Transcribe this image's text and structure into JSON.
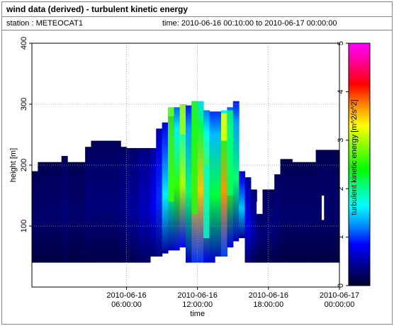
{
  "header": {
    "title": "wind data (derived) - turbulent kinetic energy",
    "station": "station : METEOCAT1",
    "time_range": "time: 2010-06-16 00:10:00 to 2010-06-17 00:00:00"
  },
  "colors": {
    "background_missing": "#ffffff",
    "grid": "#9a9a9a"
  },
  "chart_data": {
    "type": "heatmap",
    "xlabel": "time",
    "ylabel": "height [m]",
    "x_unit": "hours since 2010-06-16 00:00",
    "xlim": [
      -2,
      24
    ],
    "ylim": [
      0,
      400
    ],
    "x_ticks": [
      {
        "value": 6,
        "label1": "2010-06-16",
        "label2": "06:00:00"
      },
      {
        "value": 12,
        "label1": "2010-06-16",
        "label2": "12:00:00"
      },
      {
        "value": 18,
        "label1": "2010-06-16",
        "label2": "18:00:00"
      },
      {
        "value": 24,
        "label1": "2010-06-17",
        "label2": "00:00:00"
      }
    ],
    "y_ticks": [
      {
        "value": 100,
        "label": "100"
      },
      {
        "value": 200,
        "label": "200"
      },
      {
        "value": 300,
        "label": "300"
      },
      {
        "value": 400,
        "label": "400"
      }
    ],
    "colorbar": {
      "label": "turbulent kinetic energy [m^2/s^2]",
      "min": 0,
      "max": 5,
      "ticks": [
        "0",
        "1",
        "2",
        "3",
        "4",
        "5"
      ],
      "stops": [
        [
          0.0,
          "#00002e"
        ],
        [
          0.08,
          "#00008c"
        ],
        [
          0.17,
          "#0000ff"
        ],
        [
          0.25,
          "#0090ff"
        ],
        [
          0.33,
          "#00ffff"
        ],
        [
          0.4,
          "#00ff90"
        ],
        [
          0.48,
          "#00ff00"
        ],
        [
          0.57,
          "#80ff00"
        ],
        [
          0.66,
          "#ffff00"
        ],
        [
          0.74,
          "#ff9000"
        ],
        [
          0.83,
          "#ff0000"
        ],
        [
          0.92,
          "#ff0090"
        ],
        [
          1.0,
          "#ff00ff"
        ]
      ]
    },
    "columns": [
      {
        "x0": -2.0,
        "x1": -1.5,
        "bottom": 40,
        "top": 190,
        "tke": 0.2
      },
      {
        "x0": -1.5,
        "x1": 0.5,
        "bottom": 40,
        "top": 205,
        "tke": 0.2
      },
      {
        "x0": 0.5,
        "x1": 1.0,
        "bottom": 40,
        "top": 215,
        "tke": 0.25
      },
      {
        "x0": 1.0,
        "x1": 2.5,
        "bottom": 40,
        "top": 205,
        "tke": 0.2
      },
      {
        "x0": 2.5,
        "x1": 3.0,
        "bottom": 40,
        "top": 230,
        "tke": 0.25
      },
      {
        "x0": 3.0,
        "x1": 5.5,
        "bottom": 40,
        "top": 240,
        "tke": 0.25
      },
      {
        "x0": 5.5,
        "x1": 6.0,
        "bottom": 40,
        "top": 230,
        "tke": 0.3
      },
      {
        "x0": 6.0,
        "x1": 7.0,
        "bottom": 40,
        "top": 228,
        "tke": 0.35
      },
      {
        "x0": 7.0,
        "x1": 8.0,
        "bottom": 40,
        "top": 228,
        "tke": 0.45
      },
      {
        "x0": 8.0,
        "x1": 8.5,
        "bottom": 50,
        "top": 228,
        "tke": 0.6
      },
      {
        "x0": 8.5,
        "x1": 9.0,
        "bottom": 50,
        "top": 260,
        "tke": 0.75
      },
      {
        "x0": 9.0,
        "x1": 9.5,
        "bottom": 55,
        "top": 270,
        "tke": 1.0
      },
      {
        "x0": 9.5,
        "x1": 10.0,
        "bottom": 60,
        "top": 280,
        "tke": 1.3
      },
      {
        "x0": 10.0,
        "x1": 10.5,
        "bottom": 60,
        "top": 295,
        "tke": 1.6
      },
      {
        "x0": 10.5,
        "x1": 11.0,
        "bottom": 65,
        "top": 300,
        "tke": 1.9
      },
      {
        "x0": 11.0,
        "x1": 11.5,
        "bottom": 40,
        "top": 298,
        "tke": 1.3
      },
      {
        "x0": 11.5,
        "x1": 12.5,
        "bottom": 40,
        "top": 305,
        "tke": 2.2
      },
      {
        "x0": 12.5,
        "x1": 13.0,
        "bottom": 40,
        "top": 290,
        "tke": 1.7
      },
      {
        "x0": 13.0,
        "x1": 14.0,
        "bottom": 40,
        "top": 288,
        "tke": 1.4
      },
      {
        "x0": 14.0,
        "x1": 14.5,
        "bottom": 50,
        "top": 290,
        "tke": 2.3
      },
      {
        "x0": 14.5,
        "x1": 15.0,
        "bottom": 65,
        "top": 295,
        "tke": 1.6
      },
      {
        "x0": 15.0,
        "x1": 15.5,
        "bottom": 75,
        "top": 305,
        "tke": 1.3
      },
      {
        "x0": 15.5,
        "x1": 16.0,
        "bottom": 80,
        "top": 190,
        "tke": 0.9
      },
      {
        "x0": 16.0,
        "x1": 16.5,
        "bottom": 40,
        "top": 180,
        "tke": 0.6
      },
      {
        "x0": 16.5,
        "x1": 17.0,
        "bottom": 40,
        "top": 160,
        "tke": 0.4
      },
      {
        "x0": 17.0,
        "x1": 17.5,
        "bottom": 40,
        "top": 135,
        "tke": 0.25
      },
      {
        "x0": 17.5,
        "x1": 18.5,
        "bottom": 40,
        "top": 160,
        "tke": 0.25
      },
      {
        "x0": 18.5,
        "x1": 19.0,
        "bottom": 40,
        "top": 185,
        "tke": 0.25
      },
      {
        "x0": 19.0,
        "x1": 20.0,
        "bottom": 40,
        "top": 210,
        "tke": 0.2
      },
      {
        "x0": 20.0,
        "x1": 22.0,
        "bottom": 40,
        "top": 205,
        "tke": 0.2
      },
      {
        "x0": 22.0,
        "x1": 24.0,
        "bottom": 40,
        "top": 225,
        "tke": 0.2
      }
    ],
    "streaks": [
      {
        "x0": 9.5,
        "x1": 10.0,
        "bottom": 140,
        "top": 295,
        "tke": 2.6
      },
      {
        "x0": 10.5,
        "x1": 11.0,
        "bottom": 250,
        "top": 300,
        "tke": 3.0
      },
      {
        "x0": 11.5,
        "x1": 12.0,
        "bottom": 120,
        "top": 305,
        "tke": 2.5
      },
      {
        "x0": 14.0,
        "x1": 14.5,
        "bottom": 240,
        "top": 285,
        "tke": 3.3
      },
      {
        "x0": 14.5,
        "x1": 15.0,
        "bottom": 150,
        "top": 290,
        "tke": 2.1
      },
      {
        "x0": 12.5,
        "x1": 13.0,
        "bottom": 80,
        "top": 200,
        "tke": 1.8
      }
    ],
    "gaps": [
      {
        "x0": 10.5,
        "x1": 11.0,
        "bottom": 40,
        "top": 65
      },
      {
        "x0": 13.5,
        "x1": 14.5,
        "bottom": 40,
        "top": 50
      },
      {
        "x0": 15.5,
        "x1": 16.0,
        "bottom": 40,
        "top": 80
      },
      {
        "x0": 17.0,
        "x1": 17.5,
        "bottom": 120,
        "top": 140
      },
      {
        "x0": 22.5,
        "x1": 22.7,
        "bottom": 110,
        "top": 150
      }
    ]
  }
}
